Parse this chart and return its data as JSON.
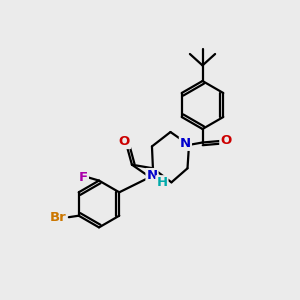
{
  "background_color": "#ebebeb",
  "bond_color": "#000000",
  "atom_colors": {
    "N": "#0000cc",
    "O": "#cc0000",
    "F": "#aa00aa",
    "Br": "#cc7700",
    "C": "#000000",
    "H": "#00aaaa"
  },
  "figsize": [
    3.0,
    3.0
  ],
  "dpi": 100,
  "lw": 1.6,
  "dbl_off": 0.09
}
